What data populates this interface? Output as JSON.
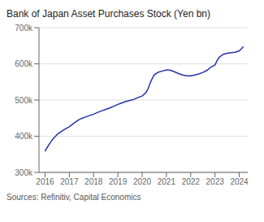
{
  "chart_data": {
    "type": "line",
    "title": "Bank of Japan Asset Purchases Stock (Yen bn)",
    "annotations": [
      "Sources: Refinitiv, Capital Economics"
    ],
    "color": "#2233aa",
    "grid": true,
    "xlim": [
      2015.75,
      2024.35
    ],
    "xticks": [
      2016,
      2017,
      2018,
      2019,
      2020,
      2021,
      2022,
      2023,
      2024
    ],
    "ylim": [
      300000,
      700000
    ],
    "yticks": [
      {
        "value": 300000,
        "label": "300k"
      },
      {
        "value": 400000,
        "label": "400k"
      },
      {
        "value": 500000,
        "label": "500k"
      },
      {
        "value": 600000,
        "label": "600k"
      },
      {
        "value": 700000,
        "label": "700k"
      }
    ],
    "x": [
      2016.0,
      2016.08,
      2016.17,
      2016.33,
      2016.5,
      2016.67,
      2016.83,
      2017.0,
      2017.17,
      2017.33,
      2017.5,
      2017.67,
      2017.83,
      2018.0,
      2018.17,
      2018.33,
      2018.5,
      2018.67,
      2018.83,
      2019.0,
      2019.17,
      2019.33,
      2019.5,
      2019.67,
      2019.83,
      2020.0,
      2020.08,
      2020.17,
      2020.25,
      2020.33,
      2020.42,
      2020.5,
      2020.67,
      2020.83,
      2021.0,
      2021.08,
      2021.17,
      2021.33,
      2021.5,
      2021.67,
      2021.83,
      2022.0,
      2022.17,
      2022.33,
      2022.5,
      2022.67,
      2022.83,
      2023.0,
      2023.08,
      2023.17,
      2023.33,
      2023.5,
      2023.67,
      2023.83,
      2024.0,
      2024.08,
      2024.17
    ],
    "values": [
      358000,
      368000,
      378000,
      393000,
      405000,
      413000,
      420000,
      426000,
      435000,
      443000,
      449000,
      453000,
      457000,
      461000,
      466000,
      470000,
      474000,
      478000,
      483000,
      488000,
      492000,
      496000,
      499000,
      502000,
      507000,
      511000,
      516000,
      522000,
      532000,
      547000,
      560000,
      570000,
      577000,
      580000,
      583000,
      583000,
      582000,
      578000,
      573000,
      569000,
      567000,
      567000,
      569000,
      572000,
      576000,
      582000,
      591000,
      597000,
      608000,
      618000,
      626000,
      629000,
      631000,
      632000,
      636000,
      641000,
      648000
    ]
  }
}
